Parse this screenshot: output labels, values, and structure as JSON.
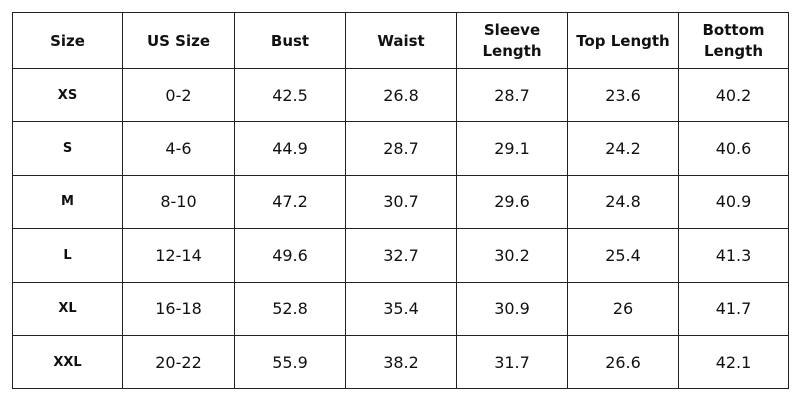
{
  "table": {
    "header": [
      "Size",
      "US Size",
      "Bust",
      "Waist",
      "Sleeve Length",
      "Top Length",
      "Bottom Length"
    ],
    "rows": [
      [
        "XS",
        "0-2",
        42.5,
        26.8,
        28.7,
        23.6,
        40.2
      ],
      [
        "S",
        "4-6",
        44.9,
        28.7,
        29.1,
        24.2,
        40.6
      ],
      [
        "M",
        "8-10",
        47.2,
        30.7,
        29.6,
        24.8,
        40.9
      ],
      [
        "L",
        "12-14",
        49.6,
        32.7,
        30.2,
        25.4,
        41.3
      ],
      [
        "XL",
        "16-18",
        52.8,
        35.4,
        30.9,
        26,
        41.7
      ],
      [
        "XXL",
        "20-22",
        55.9,
        38.2,
        31.7,
        26.6,
        42.1
      ]
    ]
  }
}
